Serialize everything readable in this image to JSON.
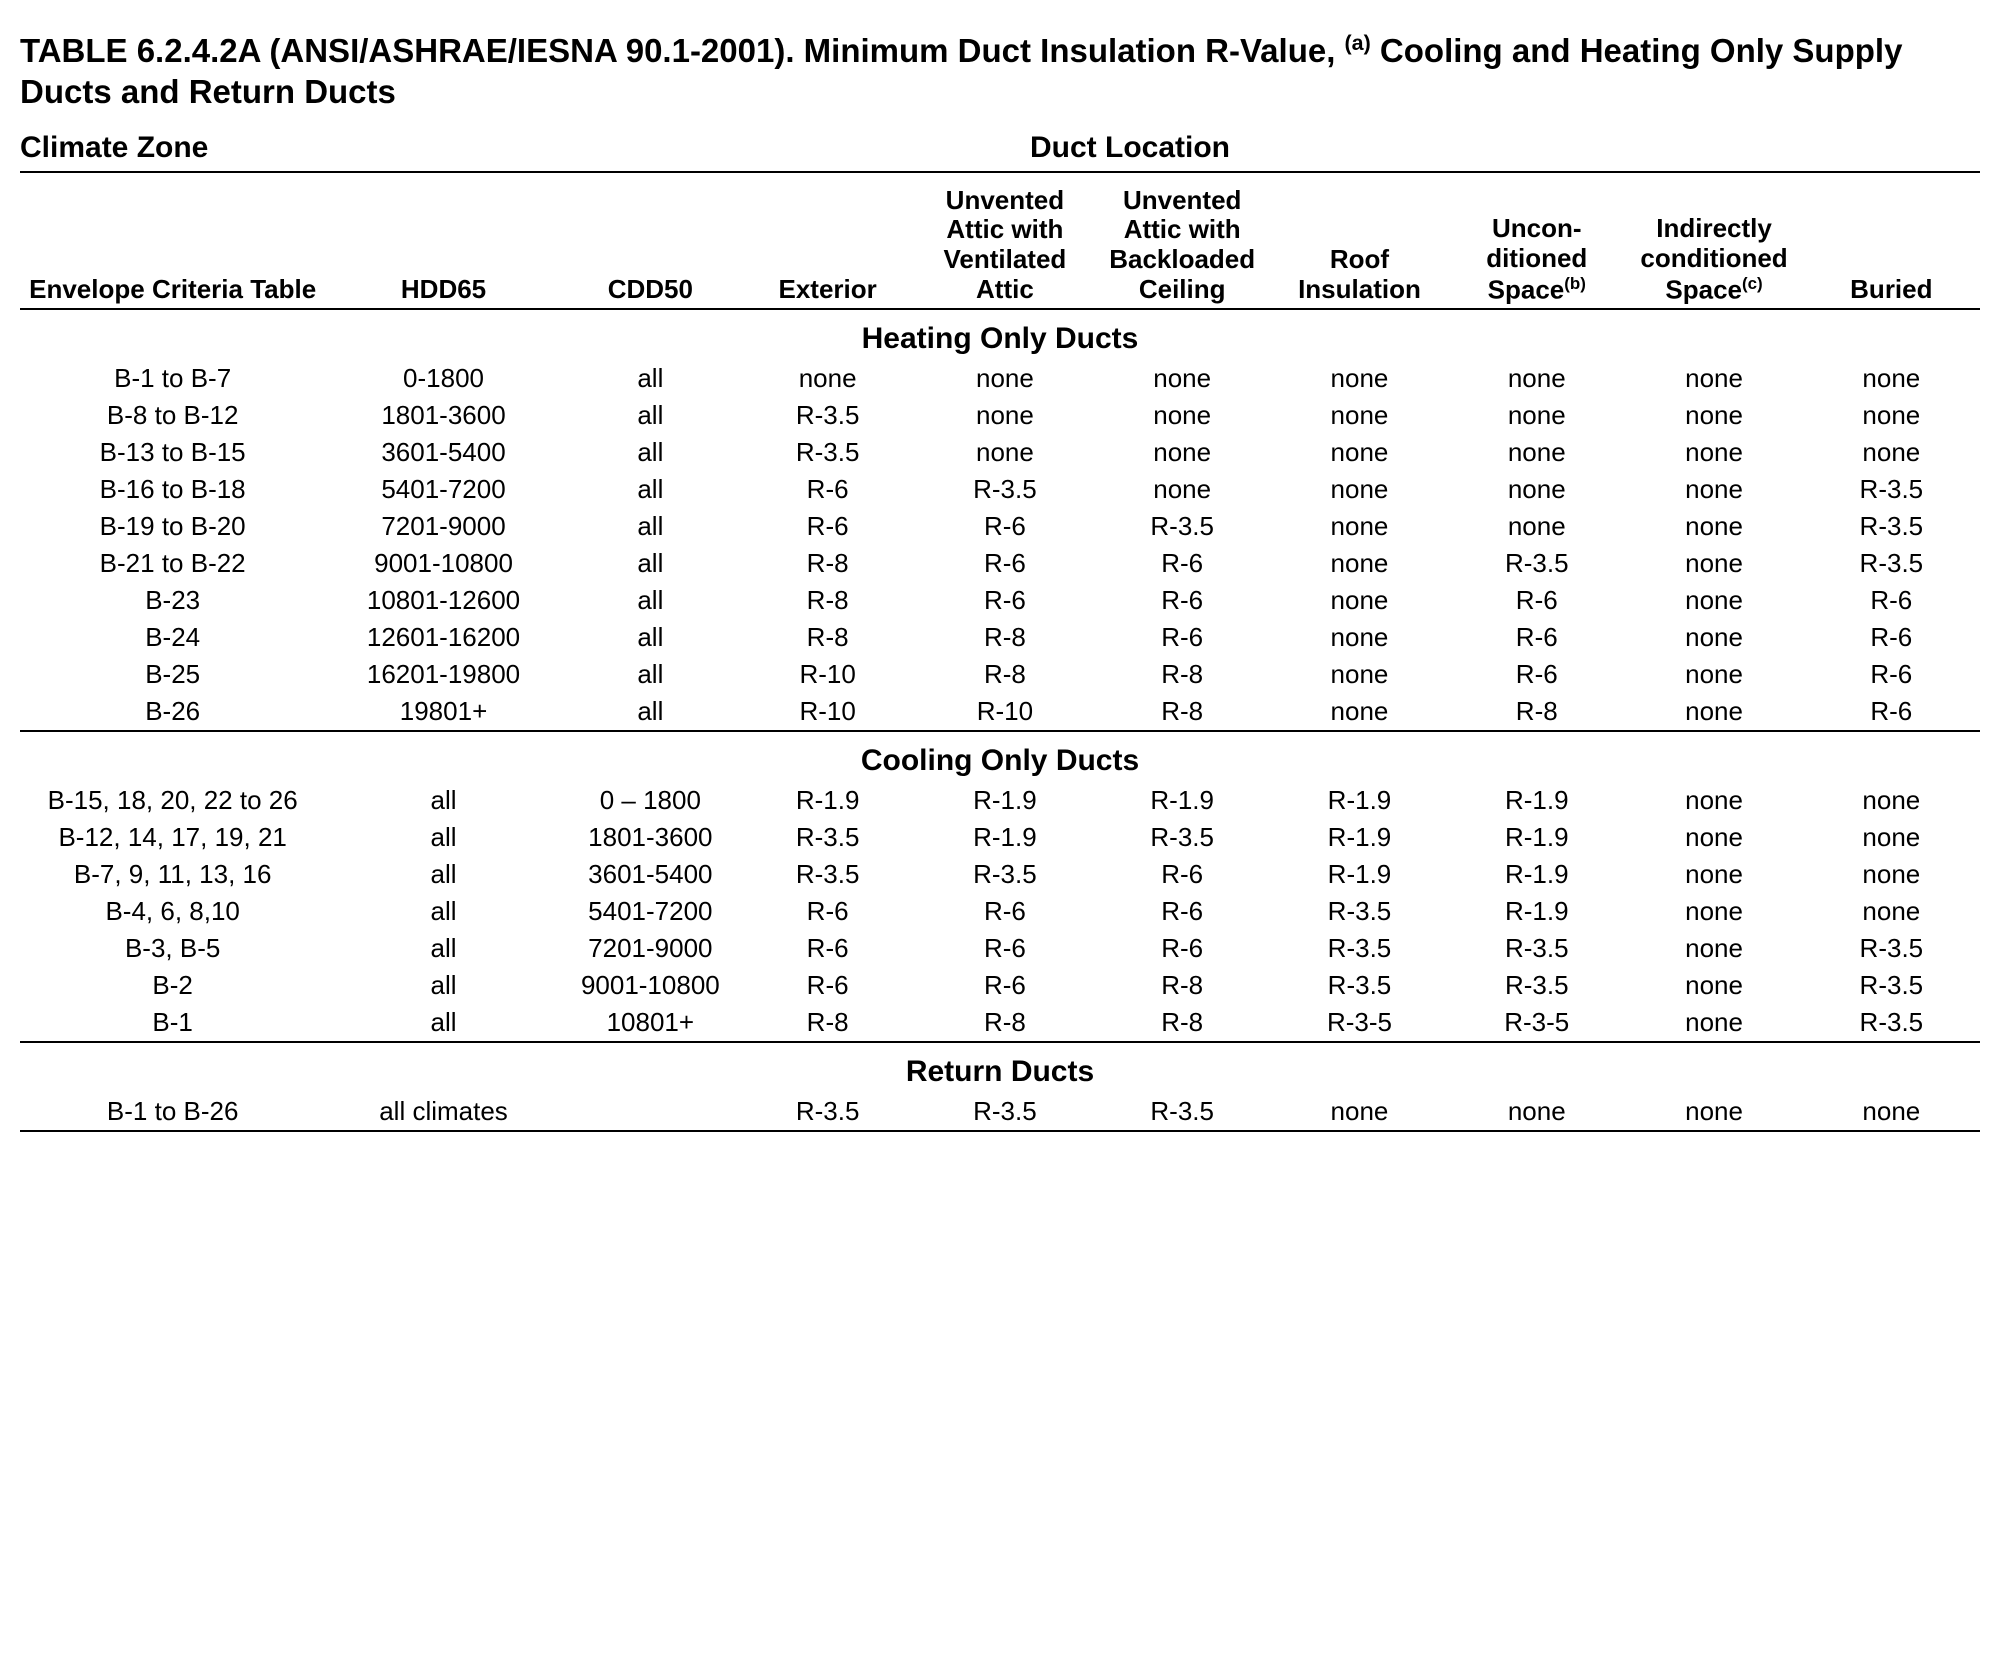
{
  "title_prefix": "TABLE 6.2.4.2A (ANSI/ASHRAE/IESNA 90.1-2001). Minimum Duct Insulation R-Value, ",
  "title_sup": "(a)",
  "title_suffix": " Cooling and Heating Only Supply Ducts and Return Ducts",
  "top_left": "Climate Zone",
  "top_right": "Duct Location",
  "columns": [
    "Envelope Criteria Table",
    "HDD65",
    "CDD50",
    "Exterior",
    "Unvented Attic with Ventilated Attic",
    "Unvented Attic with Backloaded Ceiling",
    "Roof Insulation",
    "Uncon- ditioned Space",
    "Indirectly conditioned Space",
    "Buried"
  ],
  "col_sup": {
    "7": "(b)",
    "8": "(c)"
  },
  "sections": [
    {
      "title": "Heating Only Ducts",
      "rows": [
        [
          "B-1 to B-7",
          "0-1800",
          "all",
          "none",
          "none",
          "none",
          "none",
          "none",
          "none",
          "none"
        ],
        [
          "B-8 to B-12",
          "1801-3600",
          "all",
          "R-3.5",
          "none",
          "none",
          "none",
          "none",
          "none",
          "none"
        ],
        [
          "B-13 to B-15",
          "3601-5400",
          "all",
          "R-3.5",
          "none",
          "none",
          "none",
          "none",
          "none",
          "none"
        ],
        [
          "B-16 to B-18",
          "5401-7200",
          "all",
          "R-6",
          "R-3.5",
          "none",
          "none",
          "none",
          "none",
          "R-3.5"
        ],
        [
          "B-19 to B-20",
          "7201-9000",
          "all",
          "R-6",
          "R-6",
          "R-3.5",
          "none",
          "none",
          "none",
          "R-3.5"
        ],
        [
          "B-21 to B-22",
          "9001-10800",
          "all",
          "R-8",
          "R-6",
          "R-6",
          "none",
          "R-3.5",
          "none",
          "R-3.5"
        ],
        [
          "B-23",
          "10801-12600",
          "all",
          "R-8",
          "R-6",
          "R-6",
          "none",
          "R-6",
          "none",
          "R-6"
        ],
        [
          "B-24",
          "12601-16200",
          "all",
          "R-8",
          "R-8",
          "R-6",
          "none",
          "R-6",
          "none",
          "R-6"
        ],
        [
          "B-25",
          "16201-19800",
          "all",
          "R-10",
          "R-8",
          "R-8",
          "none",
          "R-6",
          "none",
          "R-6"
        ],
        [
          "B-26",
          "19801+",
          "all",
          "R-10",
          "R-10",
          "R-8",
          "none",
          "R-8",
          "none",
          "R-6"
        ]
      ]
    },
    {
      "title": "Cooling Only Ducts",
      "rows": [
        [
          "B-15, 18, 20, 22 to 26",
          "all",
          "0 – 1800",
          "R-1.9",
          "R-1.9",
          "R-1.9",
          "R-1.9",
          "R-1.9",
          "none",
          "none"
        ],
        [
          "B-12, 14, 17, 19, 21",
          "all",
          "1801-3600",
          "R-3.5",
          "R-1.9",
          "R-3.5",
          "R-1.9",
          "R-1.9",
          "none",
          "none"
        ],
        [
          "B-7, 9, 11, 13, 16",
          "all",
          "3601-5400",
          "R-3.5",
          "R-3.5",
          "R-6",
          "R-1.9",
          "R-1.9",
          "none",
          "none"
        ],
        [
          "B-4, 6, 8,10",
          "all",
          "5401-7200",
          "R-6",
          "R-6",
          "R-6",
          "R-3.5",
          "R-1.9",
          "none",
          "none"
        ],
        [
          "B-3, B-5",
          "all",
          "7201-9000",
          "R-6",
          "R-6",
          "R-6",
          "R-3.5",
          "R-3.5",
          "none",
          "R-3.5"
        ],
        [
          "B-2",
          "all",
          "9001-10800",
          "R-6",
          "R-6",
          "R-8",
          "R-3.5",
          "R-3.5",
          "none",
          "R-3.5"
        ],
        [
          "B-1",
          "all",
          "10801+",
          "R-8",
          "R-8",
          "R-8",
          "R-3-5",
          "R-3-5",
          "none",
          "R-3.5"
        ]
      ]
    },
    {
      "title": "Return Ducts",
      "rows": [
        [
          "B-1 to B-26",
          "all climates",
          "",
          "R-3.5",
          "R-3.5",
          "R-3.5",
          "none",
          "none",
          "none",
          "none"
        ]
      ]
    }
  ]
}
